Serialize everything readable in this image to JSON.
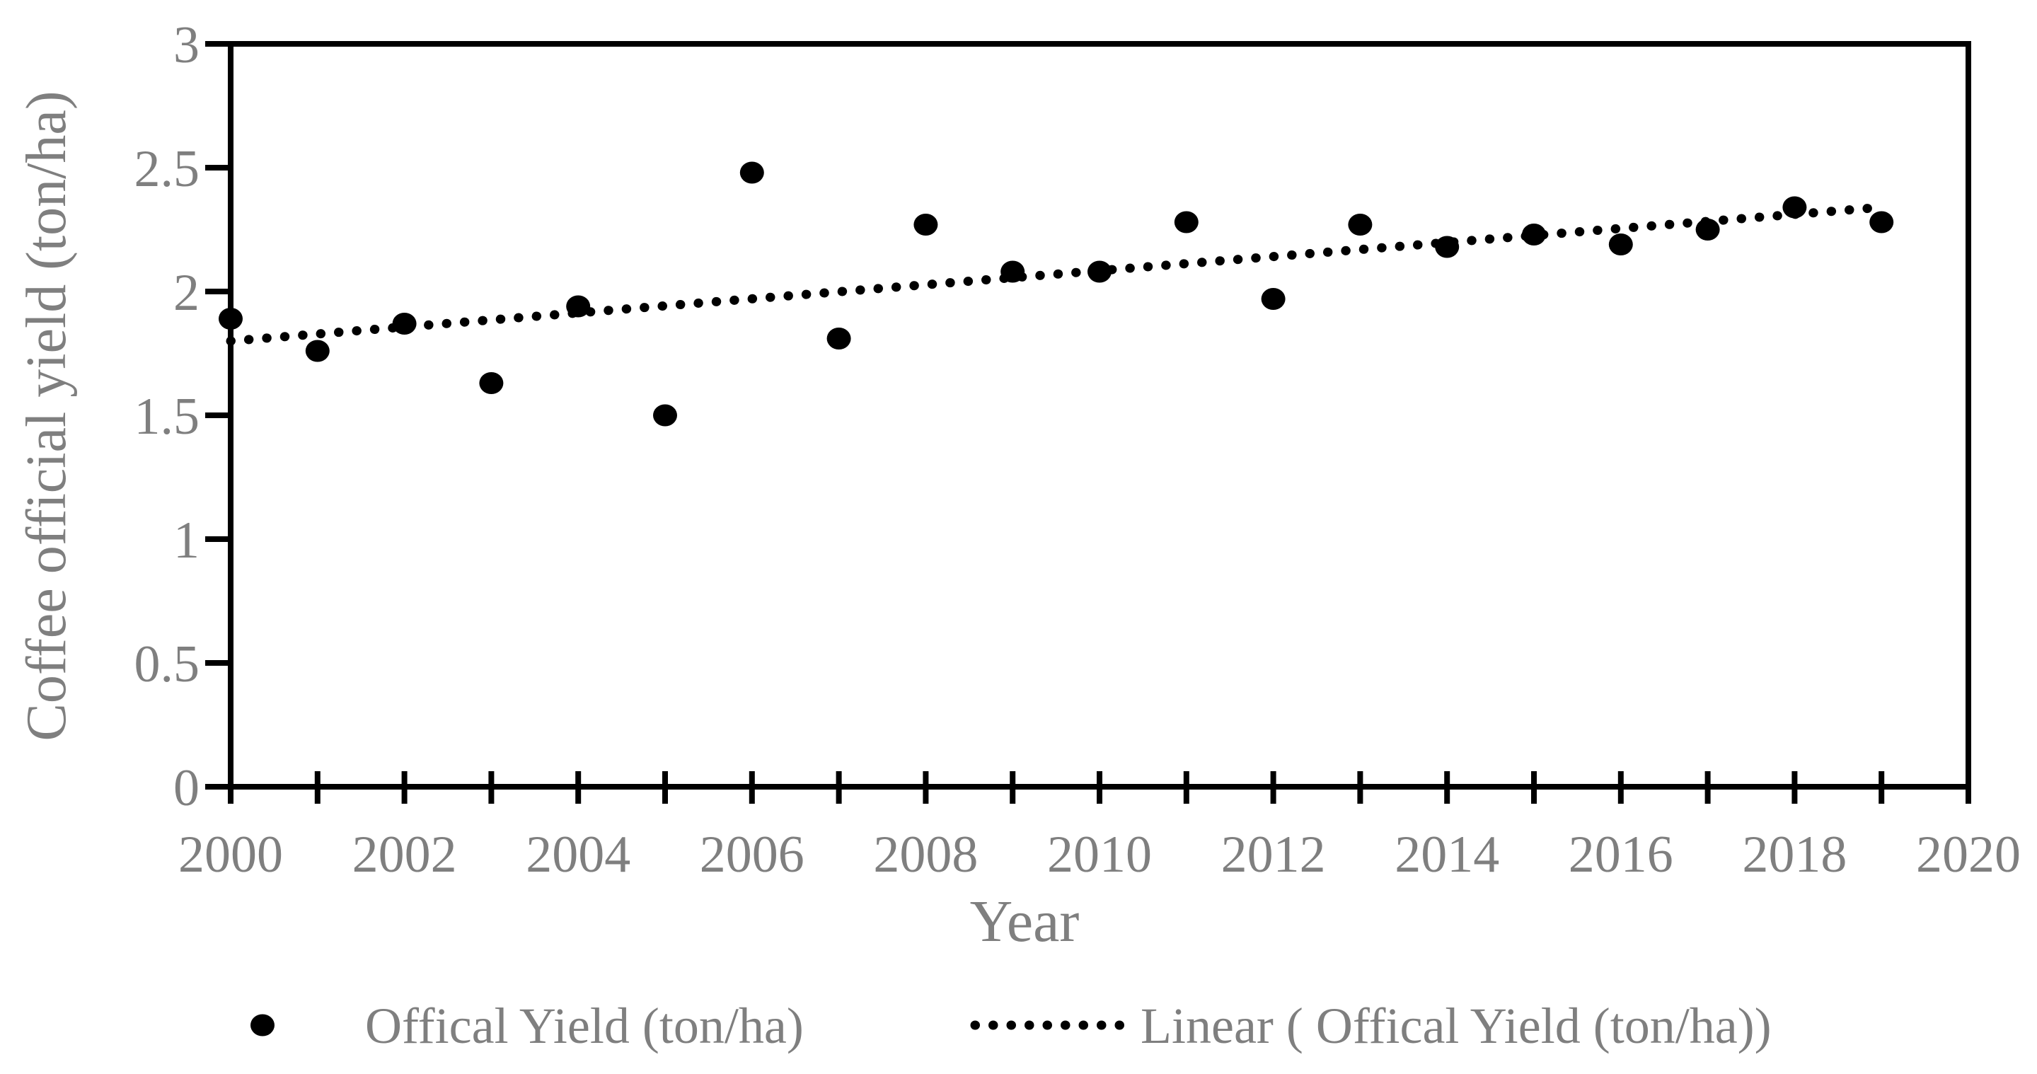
{
  "chart_data": {
    "type": "scatter",
    "title": "",
    "xlabel": "Year",
    "ylabel": "Coffee official yield (ton/ha)",
    "xlim": [
      2000,
      2020
    ],
    "ylim": [
      0,
      3
    ],
    "grid": false,
    "x_tick_labels": [
      "2000",
      "2002",
      "2004",
      "2006",
      "2008",
      "2010",
      "2012",
      "2014",
      "2016",
      "2018",
      "2020"
    ],
    "x_tick_values": [
      2000,
      2002,
      2004,
      2006,
      2008,
      2010,
      2012,
      2014,
      2016,
      2018,
      2020
    ],
    "x_minor_tick_step": 1,
    "y_tick_labels": [
      "0",
      "0.5",
      "1",
      "1.5",
      "2",
      "2.5",
      "3"
    ],
    "y_tick_values": [
      0,
      0.5,
      1,
      1.5,
      2,
      2.5,
      3
    ],
    "series": [
      {
        "name": "Offical Yield (ton/ha)",
        "marker": "filled-circle",
        "x": [
          2000,
          2001,
          2002,
          2003,
          2004,
          2005,
          2006,
          2007,
          2008,
          2009,
          2010,
          2011,
          2012,
          2013,
          2014,
          2015,
          2016,
          2017,
          2018,
          2019
        ],
        "values": [
          1.89,
          1.76,
          1.87,
          1.63,
          1.94,
          1.5,
          2.48,
          1.81,
          2.27,
          2.08,
          2.08,
          2.28,
          1.97,
          2.27,
          2.18,
          2.23,
          2.19,
          2.25,
          2.34,
          2.28
        ]
      }
    ],
    "trendline": {
      "name": "Linear ( Offical Yield (ton/ha))",
      "style": "dotted",
      "x_start": 2000,
      "x_end": 2019,
      "y_start": 1.8,
      "y_end": 2.34
    },
    "legend": {
      "position": "bottom",
      "entries": [
        "Offical Yield (ton/ha)",
        "Linear ( Offical Yield (ton/ha))"
      ]
    },
    "colors": {
      "marker": "#000000",
      "trend_line": "#000000",
      "axis": "#000000",
      "labels": "#7f7f7f",
      "background": "#ffffff"
    }
  }
}
